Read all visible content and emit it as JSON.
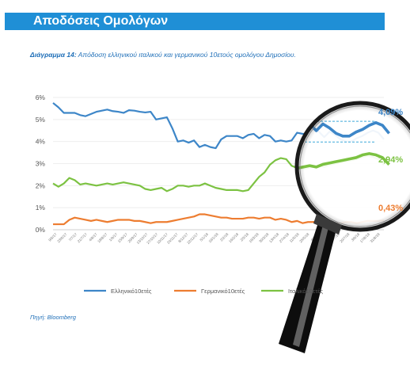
{
  "header": {
    "title": "Αποδόσεις Ομολόγων"
  },
  "caption": {
    "label": "Διάγραμμα 14:",
    "text": " Απόδοση ελληνικού ιταλικού και γερμανικού 10ετούς ομολόγου Δημοσίου."
  },
  "source": "Πηγή: Bloomberg",
  "chart_data": {
    "type": "line",
    "ylim": [
      0,
      6
    ],
    "yticks": [
      "0%",
      "1%",
      "2%",
      "3%",
      "4%",
      "5%",
      "6%"
    ],
    "x_labels": [
      "9/6/17",
      "23/6/17",
      "7/7/17",
      "21/7/17",
      "4/8/17",
      "18/8/17",
      "1/9/17",
      "15/9/17",
      "29/9/17",
      "13/10/17",
      "27/10/17",
      "10/11/17",
      "24/11/17",
      "8/12/17",
      "22/12/17",
      "5/1/18",
      "19/1/18",
      "2/2/18",
      "16/2/18",
      "2/3/18",
      "16/3/18",
      "30/3/18",
      "13/4/18",
      "27/4/18",
      "11/5/18",
      "25/5/18",
      "8/6/18",
      "22/6/18",
      "6/7/18",
      "20/7/18",
      "3/8/18",
      "17/8/18",
      "31/8/18"
    ],
    "series": [
      {
        "name": "Ελληνικό10ετές",
        "color": "#3d86c8",
        "end_label": "4,09%",
        "values": [
          5.75,
          5.55,
          5.3,
          5.3,
          5.3,
          5.2,
          5.15,
          5.25,
          5.35,
          5.4,
          5.45,
          5.38,
          5.35,
          5.3,
          5.42,
          5.4,
          5.35,
          5.32,
          5.35,
          5.0,
          5.05,
          5.1,
          4.6,
          4.0,
          4.05,
          3.95,
          4.05,
          3.75,
          3.85,
          3.75,
          3.7,
          4.1,
          4.25,
          4.25,
          4.25,
          4.15,
          4.3,
          4.35,
          4.15,
          4.3,
          4.25,
          4.0,
          4.05,
          4.0,
          4.05,
          4.4,
          4.35,
          4.35,
          4.55,
          4.45,
          4.2,
          4.45,
          4.3,
          4.1,
          4.0,
          4.0,
          4.15,
          4.25,
          4.4,
          4.5,
          4.4,
          4.1
        ]
      },
      {
        "name": "Γερμανικό10ετές",
        "color": "#ed7d31",
        "end_label": "0,43%",
        "values": [
          0.25,
          0.25,
          0.25,
          0.45,
          0.55,
          0.5,
          0.45,
          0.4,
          0.45,
          0.4,
          0.35,
          0.4,
          0.45,
          0.45,
          0.45,
          0.4,
          0.4,
          0.35,
          0.3,
          0.35,
          0.35,
          0.35,
          0.4,
          0.45,
          0.5,
          0.55,
          0.6,
          0.7,
          0.7,
          0.65,
          0.6,
          0.55,
          0.55,
          0.5,
          0.5,
          0.5,
          0.55,
          0.55,
          0.5,
          0.55,
          0.55,
          0.45,
          0.5,
          0.45,
          0.35,
          0.4,
          0.3,
          0.35,
          0.35,
          0.4,
          0.3,
          0.35,
          0.3,
          0.3,
          0.35,
          0.35,
          0.3,
          0.35,
          0.4,
          0.4,
          0.4,
          0.43
        ]
      },
      {
        "name": "Ιταλικό10ετές",
        "color": "#7cc242",
        "end_label": "2,94%",
        "values": [
          2.1,
          1.95,
          2.1,
          2.35,
          2.25,
          2.05,
          2.1,
          2.05,
          2.0,
          2.05,
          2.1,
          2.05,
          2.1,
          2.15,
          2.1,
          2.05,
          2.0,
          1.85,
          1.8,
          1.85,
          1.9,
          1.75,
          1.85,
          2.0,
          2.0,
          1.95,
          2.0,
          2.0,
          2.1,
          2.0,
          1.9,
          1.85,
          1.8,
          1.8,
          1.8,
          1.75,
          1.8,
          2.1,
          2.4,
          2.6,
          2.95,
          3.15,
          3.25,
          3.2,
          2.9,
          2.8,
          2.75,
          2.8,
          2.85,
          2.9,
          2.85,
          2.95,
          3.0,
          3.05,
          3.1,
          3.15,
          3.2,
          3.3,
          3.35,
          3.3,
          3.2,
          2.94
        ]
      }
    ]
  }
}
